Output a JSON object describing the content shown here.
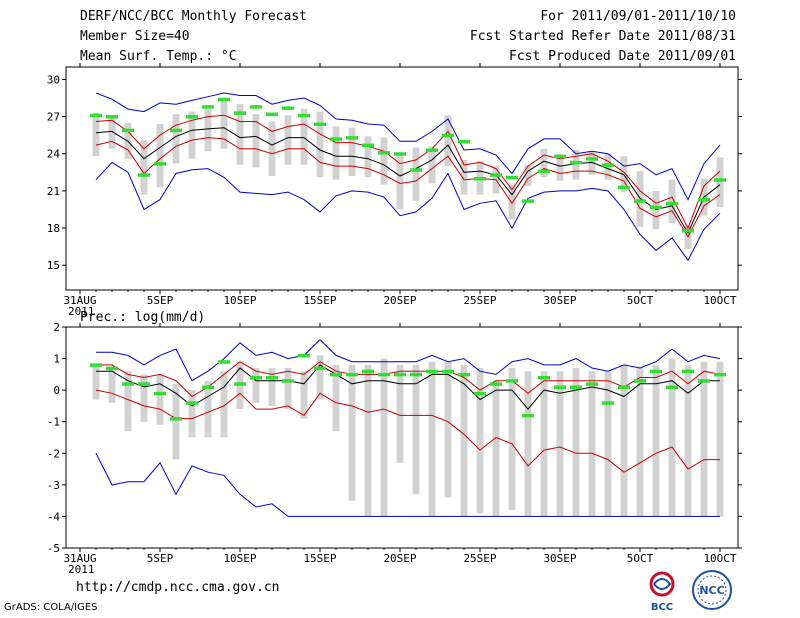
{
  "header": {
    "left": [
      "DERF/NCC/BCC Monthly Forecast",
      "Member Size=40",
      "Mean Surf. Temp.: °C"
    ],
    "right": [
      "For 2011/09/01-2011/10/10",
      "Fcst Started Refer Date 2011/08/31",
      "Fcst Produced Date 2011/09/01"
    ]
  },
  "footer": {
    "url": "http://cmdp.ncc.cma.gov.cn",
    "credit": "GrADS: COLA/IGES"
  },
  "logos": {
    "bcc": "BCC",
    "ncc": "NCC"
  },
  "colors": {
    "envelope": "#0000cc",
    "spread": "#cc0000",
    "mean": "#000000",
    "box": "#d2d2d2",
    "marker": "#33dd33"
  },
  "chart_data": [
    {
      "type": "line",
      "title": "Mean Surf. Temp.: °C",
      "ylabel": "°C",
      "ylim": [
        13,
        31
      ],
      "yticks": [
        15,
        18,
        21,
        24,
        27,
        30
      ],
      "xlim": [
        0,
        40
      ],
      "xticks": [
        {
          "day": 0,
          "label": "31AUG",
          "sublabel": "2011"
        },
        {
          "day": 5,
          "label": "5SEP"
        },
        {
          "day": 10,
          "label": "10SEP"
        },
        {
          "day": 15,
          "label": "15SEP"
        },
        {
          "day": 20,
          "label": "20SEP"
        },
        {
          "day": 25,
          "label": "25SEP"
        },
        {
          "day": 30,
          "label": "30SEP"
        },
        {
          "day": 35,
          "label": "5OCT"
        },
        {
          "day": 40,
          "label": "10OCT"
        }
      ],
      "days": [
        1,
        2,
        3,
        4,
        5,
        6,
        7,
        8,
        9,
        10,
        11,
        12,
        13,
        14,
        15,
        16,
        17,
        18,
        19,
        20,
        21,
        22,
        23,
        24,
        25,
        26,
        27,
        28,
        29,
        30,
        31,
        32,
        33,
        34,
        35,
        36,
        37,
        38,
        39,
        40
      ],
      "series": [
        {
          "name": "member max",
          "values": [
            28.9,
            28.4,
            27.6,
            27.4,
            28.1,
            28.0,
            28.3,
            28.6,
            28.9,
            28.7,
            28.7,
            28.0,
            28.3,
            28.5,
            27.9,
            26.8,
            26.7,
            26.4,
            26.3,
            25.0,
            25.0,
            25.8,
            26.8,
            24.3,
            24.4,
            23.9,
            22.4,
            24.4,
            25.2,
            25.2,
            24.0,
            24.2,
            24.0,
            23.0,
            23.2,
            22.3,
            22.8,
            20.3,
            23.2,
            24.7
          ]
        },
        {
          "name": "upper spread",
          "values": [
            26.6,
            26.7,
            25.8,
            24.4,
            25.5,
            26.3,
            26.7,
            27.0,
            27.1,
            26.6,
            26.6,
            25.8,
            26.2,
            26.4,
            25.6,
            24.9,
            24.9,
            24.6,
            24.2,
            23.2,
            23.5,
            24.4,
            25.8,
            23.1,
            23.3,
            22.8,
            21.1,
            23.0,
            23.9,
            23.6,
            23.8,
            24.0,
            23.4,
            22.5,
            21.0,
            20.0,
            20.5,
            18.0,
            21.4,
            22.6
          ]
        },
        {
          "name": "ensemble mean",
          "values": [
            25.7,
            25.8,
            25.0,
            23.6,
            24.5,
            25.4,
            25.9,
            26.0,
            26.1,
            25.3,
            25.4,
            24.7,
            25.3,
            25.3,
            24.3,
            23.8,
            23.8,
            23.6,
            23.1,
            22.2,
            22.8,
            23.5,
            24.7,
            22.5,
            22.6,
            22.3,
            20.7,
            22.6,
            23.4,
            23.0,
            23.2,
            23.3,
            22.8,
            22.3,
            20.4,
            19.5,
            19.8,
            17.6,
            20.5,
            21.5
          ]
        },
        {
          "name": "lower spread",
          "values": [
            24.7,
            25.0,
            24.3,
            22.4,
            23.6,
            24.6,
            25.1,
            25.3,
            25.2,
            24.4,
            24.4,
            24.0,
            24.4,
            24.4,
            23.3,
            23.0,
            23.0,
            22.8,
            22.3,
            21.6,
            21.8,
            22.8,
            23.8,
            21.9,
            22.0,
            21.9,
            20.0,
            22.0,
            22.8,
            22.4,
            22.6,
            22.6,
            22.3,
            21.8,
            19.6,
            18.9,
            19.4,
            17.3,
            19.8,
            20.7
          ]
        },
        {
          "name": "member min",
          "values": [
            21.9,
            23.3,
            22.5,
            19.5,
            20.3,
            22.4,
            22.7,
            22.8,
            22.1,
            20.9,
            20.8,
            20.7,
            20.9,
            20.3,
            19.3,
            20.6,
            21.0,
            20.9,
            20.5,
            19.0,
            19.3,
            20.4,
            22.4,
            19.5,
            20.0,
            20.2,
            18.0,
            20.4,
            20.9,
            21.0,
            21.0,
            21.2,
            21.0,
            19.5,
            17.5,
            16.2,
            17.2,
            15.4,
            17.9,
            19.2
          ]
        },
        {
          "name": "box high",
          "values": [
            27.3,
            27.0,
            26.5,
            25.1,
            26.4,
            27.2,
            27.4,
            27.9,
            28.3,
            28.0,
            27.2,
            26.6,
            27.1,
            27.6,
            27.4,
            26.2,
            26.1,
            25.4,
            25.3,
            23.9,
            24.5,
            24.6,
            27.1,
            23.5,
            23.4,
            23.0,
            21.5,
            23.1,
            24.4,
            24.0,
            24.3,
            24.2,
            24.0,
            23.8,
            22.6,
            21.0,
            21.9,
            18.2,
            22.0,
            23.7
          ]
        },
        {
          "name": "box low",
          "values": [
            23.8,
            24.4,
            23.6,
            20.7,
            21.3,
            23.2,
            23.6,
            24.2,
            24.4,
            23.1,
            22.9,
            22.2,
            23.1,
            23.1,
            22.1,
            21.9,
            22.2,
            22.1,
            21.5,
            19.5,
            20.2,
            21.6,
            23.0,
            20.7,
            20.7,
            20.8,
            18.7,
            21.4,
            22.1,
            21.8,
            21.9,
            22.3,
            21.9,
            20.9,
            18.1,
            17.9,
            18.4,
            16.3,
            19.0,
            19.7
          ]
        },
        {
          "name": "marker",
          "values": [
            27.1,
            27.0,
            25.9,
            22.3,
            23.2,
            25.9,
            27.0,
            27.8,
            28.4,
            27.3,
            27.8,
            27.2,
            27.7,
            27.1,
            26.4,
            25.2,
            25.3,
            24.7,
            24.1,
            24.0,
            22.7,
            24.3,
            25.5,
            25.0,
            22.0,
            22.3,
            22.1,
            20.2,
            22.6,
            23.8,
            23.3,
            23.6,
            23.1,
            21.3,
            20.2,
            19.7,
            20.0,
            17.8,
            20.3,
            21.9
          ]
        }
      ]
    },
    {
      "type": "line",
      "title": "Prec.: log(mm/d)",
      "ylabel": "log(mm/d)",
      "ylim": [
        -5,
        2
      ],
      "yticks": [
        -5,
        -4,
        -3,
        -2,
        -1,
        0,
        1,
        2
      ],
      "xlim": [
        0,
        40
      ],
      "xticks": [
        {
          "day": 0,
          "label": "31AUG",
          "sublabel": "2011"
        },
        {
          "day": 5,
          "label": "5SEP"
        },
        {
          "day": 10,
          "label": "10SEP"
        },
        {
          "day": 15,
          "label": "15SEP"
        },
        {
          "day": 20,
          "label": "20SEP"
        },
        {
          "day": 25,
          "label": "25SEP"
        },
        {
          "day": 30,
          "label": "30SEP"
        },
        {
          "day": 35,
          "label": "5OCT"
        },
        {
          "day": 40,
          "label": "10OCT"
        }
      ],
      "days": [
        1,
        2,
        3,
        4,
        5,
        6,
        7,
        8,
        9,
        10,
        11,
        12,
        13,
        14,
        15,
        16,
        17,
        18,
        19,
        20,
        21,
        22,
        23,
        24,
        25,
        26,
        27,
        28,
        29,
        30,
        31,
        32,
        33,
        34,
        35,
        36,
        37,
        38,
        39,
        40
      ],
      "series": [
        {
          "name": "member max",
          "values": [
            1.2,
            1.2,
            1.1,
            0.8,
            1.1,
            1.3,
            0.3,
            0.6,
            1.0,
            1.5,
            1.1,
            1.2,
            1.0,
            1.1,
            1.6,
            1.1,
            0.9,
            0.9,
            0.9,
            0.9,
            0.9,
            1.1,
            0.9,
            1.0,
            0.6,
            0.5,
            0.9,
            1.0,
            0.8,
            0.8,
            1.0,
            0.7,
            0.6,
            0.8,
            0.7,
            0.9,
            1.3,
            0.9,
            1.1,
            1.0
          ]
        },
        {
          "name": "upper spread",
          "values": [
            0.8,
            0.8,
            0.5,
            0.4,
            0.5,
            0.3,
            -0.2,
            0.1,
            0.5,
            0.9,
            0.6,
            0.5,
            0.6,
            0.5,
            0.9,
            0.6,
            0.5,
            0.5,
            0.5,
            0.6,
            0.6,
            0.6,
            0.6,
            0.4,
            0.0,
            0.3,
            0.3,
            -0.1,
            0.3,
            0.3,
            0.3,
            0.3,
            0.3,
            0.1,
            0.4,
            0.4,
            0.6,
            0.2,
            0.6,
            0.5
          ]
        },
        {
          "name": "ensemble mean",
          "values": [
            0.6,
            0.6,
            0.3,
            0.1,
            0.2,
            -0.1,
            -0.5,
            -0.2,
            0.1,
            0.7,
            0.3,
            0.3,
            0.3,
            0.2,
            0.8,
            0.5,
            0.2,
            0.3,
            0.3,
            0.2,
            0.2,
            0.5,
            0.5,
            0.2,
            -0.3,
            0.0,
            0.0,
            -0.6,
            0.0,
            -0.1,
            0.0,
            0.1,
            0.0,
            -0.2,
            0.2,
            0.2,
            0.3,
            -0.1,
            0.3,
            0.3
          ]
        },
        {
          "name": "lower spread",
          "values": [
            0.0,
            -0.1,
            -0.3,
            -0.5,
            -0.6,
            -0.9,
            -0.9,
            -0.7,
            -0.5,
            -0.1,
            -0.6,
            -0.6,
            -0.5,
            -0.8,
            -0.1,
            -0.4,
            -0.5,
            -0.7,
            -0.6,
            -0.8,
            -0.8,
            -0.8,
            -1.0,
            -1.4,
            -1.9,
            -1.5,
            -1.7,
            -2.4,
            -1.9,
            -1.8,
            -2.0,
            -2.0,
            -2.2,
            -2.6,
            -2.3,
            -2.0,
            -1.8,
            -2.5,
            -2.2,
            -2.2
          ]
        },
        {
          "name": "member min",
          "values": [
            -2.0,
            -3.0,
            -2.9,
            -2.9,
            -2.3,
            -3.3,
            -2.4,
            -2.6,
            -2.7,
            -3.3,
            -3.7,
            -3.6,
            -4.0,
            -4.0,
            -4.0,
            -4.0,
            -4.0,
            -4.0,
            -4.0,
            -4.0,
            -4.0,
            -4.0,
            -4.0,
            -4.0,
            -4.0,
            -4.0,
            -4.0,
            -4.0,
            -4.0,
            -4.0,
            -4.0,
            -4.0,
            -4.0,
            -4.0,
            -4.0,
            -4.0,
            -4.0,
            -4.0,
            -4.0,
            -4.0
          ]
        },
        {
          "name": "box high",
          "values": [
            0.8,
            0.7,
            0.6,
            0.5,
            0.5,
            0.2,
            0.0,
            0.3,
            0.6,
            0.9,
            0.7,
            0.7,
            0.7,
            0.6,
            1.1,
            0.8,
            0.8,
            0.8,
            1.0,
            0.8,
            0.8,
            0.9,
            0.9,
            0.8,
            0.7,
            0.3,
            0.7,
            0.6,
            0.6,
            0.6,
            0.7,
            0.6,
            0.6,
            0.8,
            0.7,
            0.8,
            1.0,
            0.8,
            0.9,
            0.9
          ]
        },
        {
          "name": "box low",
          "values": [
            -0.3,
            -0.4,
            -1.3,
            -1.0,
            -1.1,
            -2.2,
            -1.5,
            -1.5,
            -1.5,
            -0.6,
            -0.4,
            -0.5,
            -0.6,
            -0.9,
            -0.3,
            -1.3,
            -3.5,
            -4.0,
            -4.0,
            -2.3,
            -3.3,
            -4.0,
            -3.4,
            -4.0,
            -3.9,
            -4.0,
            -3.8,
            -4.0,
            -4.0,
            -4.0,
            -4.0,
            -4.0,
            -4.0,
            -4.0,
            -4.0,
            -4.0,
            -4.0,
            -4.0,
            -4.0,
            -4.0
          ]
        },
        {
          "name": "marker",
          "values": [
            0.8,
            0.7,
            0.2,
            0.2,
            -0.1,
            -0.9,
            -0.4,
            0.1,
            0.9,
            0.2,
            0.4,
            0.4,
            0.3,
            1.1,
            0.7,
            0.5,
            0.5,
            0.6,
            0.5,
            0.5,
            0.5,
            0.6,
            0.6,
            0.5,
            -0.1,
            0.2,
            0.3,
            -0.8,
            0.4,
            0.1,
            0.1,
            0.2,
            -0.4,
            0.1,
            0.3,
            0.6,
            0.1,
            0.6,
            0.3,
            0.5
          ]
        }
      ]
    }
  ]
}
